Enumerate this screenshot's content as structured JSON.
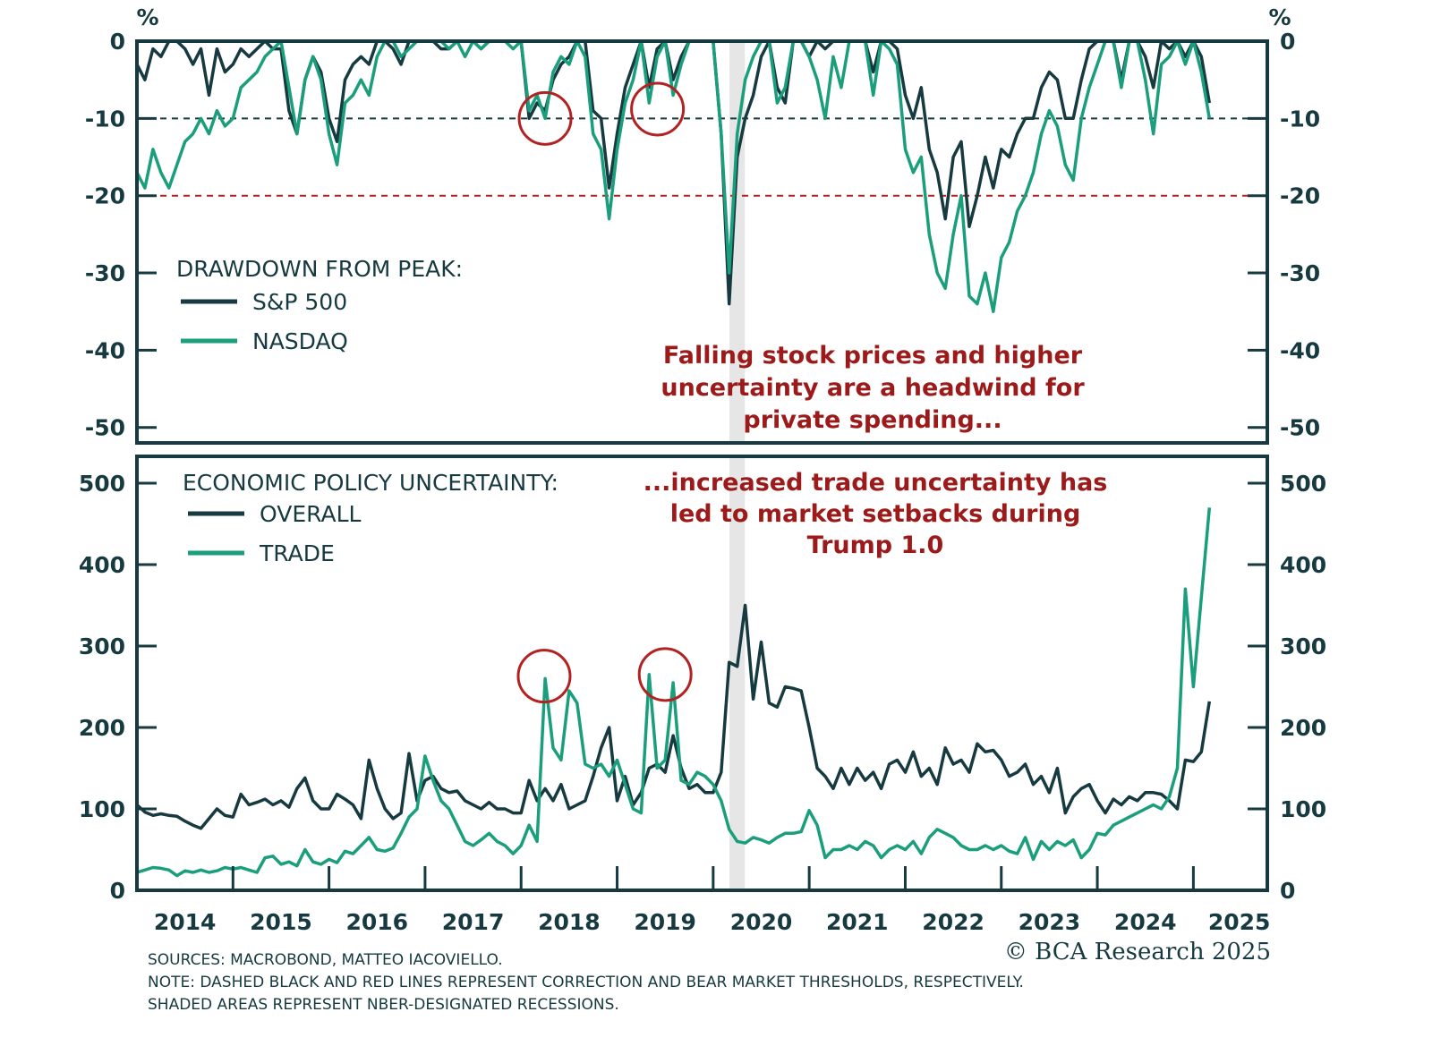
{
  "chart_data": [
    {
      "type": "line",
      "panel": "top",
      "unit_label_left": "%",
      "unit_label_right": "%",
      "legend_title": "DRAWDOWN FROM PEAK:",
      "legend_placement": "left-middle",
      "ylim": [
        -52,
        0
      ],
      "xlim": [
        2014.0,
        2025.77
      ],
      "yticks": [
        0,
        -10,
        -20,
        -30,
        -40,
        -50
      ],
      "ytick_labels": [
        "0",
        "-10",
        "-20",
        "-30",
        "-40",
        "-50"
      ],
      "reference_lines": [
        {
          "y": -10,
          "style": "dashed",
          "color": "#163a40"
        },
        {
          "y": -20,
          "style": "dashed",
          "color": "#b22222"
        }
      ],
      "series": [
        {
          "name": "S&P 500",
          "color": "#163a40",
          "start": "2014-01",
          "frequency": "monthly",
          "values": [
            -3,
            -5,
            -1,
            -2,
            0,
            0,
            -1,
            -3,
            -1,
            -7,
            -1,
            -4,
            -3,
            -1,
            -2,
            -1,
            0,
            -1,
            -1,
            -9,
            -12,
            -5,
            -2,
            -4,
            -10,
            -13,
            -5,
            -3,
            -2,
            -3,
            0,
            0,
            -1,
            -3,
            0,
            0,
            0,
            0,
            -1,
            -1,
            0,
            0,
            0,
            -1,
            0,
            0,
            0,
            0,
            0,
            -10,
            -8,
            -9,
            -5,
            -3,
            -2,
            0,
            0,
            -9,
            -10,
            -19,
            -12,
            -6,
            -3,
            0,
            -6,
            -1,
            0,
            -5,
            -2,
            0,
            0,
            0,
            0,
            -12,
            -34,
            -15,
            -10,
            -7,
            -2,
            0,
            -6,
            -8,
            0,
            0,
            -2,
            0,
            -1,
            0,
            0,
            0,
            0,
            0,
            -4,
            0,
            0,
            -1,
            -7,
            -10,
            -6,
            -14,
            -17,
            -23,
            -15,
            -13,
            -24,
            -20,
            -15,
            -19,
            -14,
            -15,
            -12,
            -10,
            -10,
            -6,
            -4,
            -5,
            -10,
            -10,
            -5,
            -1,
            0,
            0,
            0,
            -5,
            0,
            0,
            -2,
            -6,
            0,
            -1,
            0,
            -2,
            0,
            -2,
            -8
          ]
        },
        {
          "name": "NASDAQ",
          "color": "#1a9e7c",
          "start": "2014-01",
          "frequency": "monthly",
          "values": [
            -17,
            -19,
            -14,
            -17,
            -19,
            -16,
            -13,
            -12,
            -10,
            -12,
            -9,
            -11,
            -10,
            -6,
            -5,
            -4,
            -2,
            -1,
            0,
            -6,
            -12,
            -5,
            -2,
            -5,
            -12,
            -16,
            -8,
            -7,
            -5,
            -7,
            -2,
            0,
            0,
            -2,
            -1,
            0,
            0,
            0,
            0,
            -1,
            0,
            -2,
            0,
            -1,
            0,
            0,
            0,
            -1,
            0,
            -9,
            -7,
            -10,
            -4,
            -2,
            -3,
            0,
            -2,
            -12,
            -14,
            -23,
            -14,
            -8,
            -5,
            0,
            -8,
            -2,
            0,
            -7,
            -3,
            0,
            0,
            0,
            0,
            -12,
            -30,
            -12,
            -5,
            -2,
            0,
            0,
            -8,
            -6,
            0,
            0,
            -2,
            -5,
            -10,
            -2,
            -6,
            0,
            0,
            0,
            -7,
            0,
            -1,
            -3,
            -14,
            -17,
            -15,
            -25,
            -30,
            -32,
            -25,
            -20,
            -33,
            -34,
            -30,
            -35,
            -28,
            -26,
            -22,
            -20,
            -17,
            -12,
            -9,
            -11,
            -16,
            -18,
            -10,
            -6,
            -3,
            0,
            0,
            -6,
            0,
            0,
            -5,
            -12,
            -3,
            -2,
            0,
            -3,
            0,
            -4,
            -10
          ]
        }
      ],
      "highlight_circles": [
        {
          "x": 2018.25,
          "y": -10
        },
        {
          "x": 2019.42,
          "y": -8.8
        }
      ],
      "annotation": [
        "Falling stock prices and higher",
        "uncertainty are a headwind for",
        "private spending..."
      ]
    },
    {
      "type": "line",
      "panel": "bottom",
      "legend_title": "ECONOMIC POLICY UNCERTAINTY:",
      "legend_placement": "top-left",
      "ylim": [
        0,
        533
      ],
      "xlim": [
        2014.0,
        2025.77
      ],
      "yticks": [
        0,
        100,
        200,
        300,
        400,
        500
      ],
      "ytick_labels": [
        "0",
        "100",
        "200",
        "300",
        "400",
        "500"
      ],
      "series": [
        {
          "name": "OVERALL",
          "color": "#163a40",
          "start": "2014-01",
          "frequency": "monthly",
          "values": [
            105,
            96,
            92,
            94,
            92,
            91,
            85,
            80,
            76,
            88,
            100,
            92,
            90,
            118,
            105,
            108,
            112,
            105,
            110,
            102,
            125,
            138,
            110,
            100,
            100,
            118,
            112,
            105,
            88,
            160,
            125,
            100,
            88,
            95,
            168,
            110,
            135,
            140,
            125,
            120,
            122,
            110,
            105,
            100,
            108,
            100,
            100,
            95,
            95,
            135,
            110,
            125,
            110,
            130,
            100,
            105,
            110,
            140,
            175,
            200,
            110,
            140,
            105,
            120,
            150,
            155,
            145,
            190,
            150,
            125,
            130,
            120,
            120,
            145,
            280,
            275,
            350,
            235,
            305,
            230,
            225,
            250,
            248,
            245,
            200,
            150,
            140,
            125,
            150,
            130,
            150,
            135,
            145,
            125,
            155,
            160,
            145,
            170,
            140,
            150,
            130,
            175,
            155,
            160,
            145,
            180,
            170,
            172,
            160,
            140,
            145,
            155,
            130,
            140,
            120,
            150,
            95,
            115,
            125,
            130,
            110,
            95,
            112,
            105,
            115,
            110,
            120,
            120,
            118,
            110,
            100,
            160,
            158,
            170,
            232
          ]
        },
        {
          "name": "TRADE",
          "color": "#1a9e7c",
          "start": "2014-01",
          "frequency": "monthly",
          "values": [
            22,
            25,
            28,
            27,
            25,
            18,
            24,
            22,
            25,
            22,
            24,
            28,
            26,
            28,
            25,
            22,
            40,
            42,
            32,
            35,
            30,
            50,
            35,
            32,
            38,
            34,
            48,
            45,
            55,
            65,
            50,
            48,
            52,
            70,
            90,
            100,
            165,
            135,
            110,
            100,
            80,
            60,
            55,
            62,
            70,
            60,
            55,
            45,
            55,
            80,
            60,
            260,
            175,
            160,
            245,
            230,
            155,
            150,
            155,
            140,
            160,
            130,
            100,
            95,
            265,
            150,
            160,
            255,
            135,
            130,
            145,
            140,
            130,
            110,
            75,
            60,
            58,
            65,
            62,
            58,
            65,
            70,
            70,
            72,
            98,
            80,
            40,
            50,
            50,
            55,
            50,
            60,
            55,
            40,
            50,
            55,
            50,
            60,
            45,
            65,
            75,
            70,
            65,
            55,
            50,
            50,
            55,
            50,
            55,
            48,
            45,
            65,
            38,
            60,
            50,
            60,
            55,
            62,
            40,
            50,
            70,
            68,
            80,
            85,
            90,
            95,
            100,
            105,
            100,
            115,
            150,
            370,
            250,
            360,
            470
          ]
        }
      ],
      "highlight_circles": [
        {
          "x": 2018.24,
          "y": 263
        },
        {
          "x": 2019.5,
          "y": 265
        }
      ],
      "annotation": [
        "...increased trade uncertainty has",
        "led to market setbacks during",
        "Trump 1.0"
      ]
    }
  ],
  "x_axis": {
    "tick_labels": [
      "2014",
      "2015",
      "2016",
      "2017",
      "2018",
      "2019",
      "2020",
      "2021",
      "2022",
      "2023",
      "2024",
      "2025"
    ]
  },
  "recession_shading": [
    {
      "start": 2020.17,
      "end": 2020.33,
      "color": "#e6e6e6"
    }
  ],
  "footer": {
    "sources": "SOURCES: MACROBOND, MATTEO IACOVIELLO.",
    "note": "NOTE: DASHED BLACK AND RED LINES REPRESENT CORRECTION AND BEAR MARKET THRESHOLDS, RESPECTIVELY.",
    "shading_note": "SHADED AREAS REPRESENT NBER-DESIGNATED RECESSIONS.",
    "copyright": "© BCA Research 2025"
  },
  "colors": {
    "dark": "#163a40",
    "green": "#1a9e7c",
    "red": "#b22222",
    "annotation": "#9c1a1a"
  }
}
